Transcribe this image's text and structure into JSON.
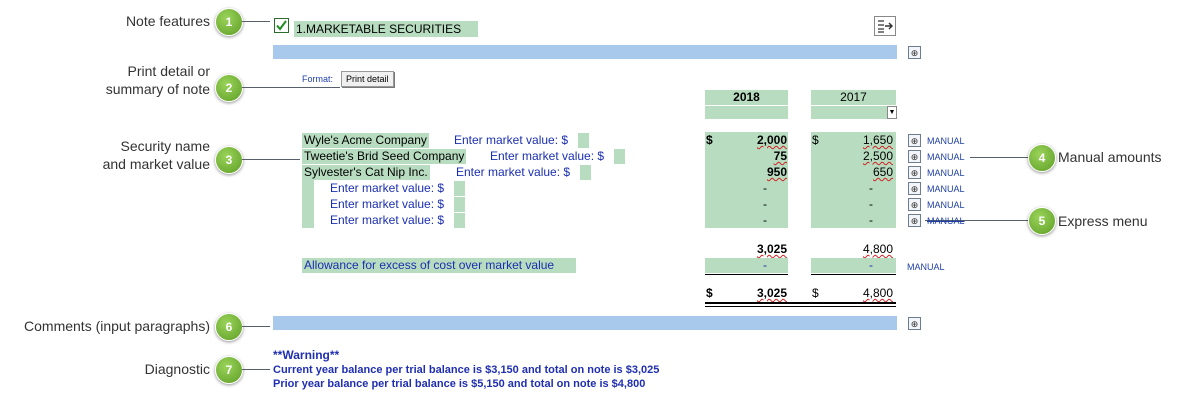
{
  "callouts": [
    {
      "num": "1",
      "label": "Note features"
    },
    {
      "num": "2",
      "label": "Print detail or summary of note"
    },
    {
      "num": "3",
      "label": "Security name and market value"
    },
    {
      "num": "4",
      "label": "Manual amounts"
    },
    {
      "num": "5",
      "label": "Express menu"
    },
    {
      "num": "6",
      "label": "Comments (input paragraphs)"
    },
    {
      "num": "7",
      "label": "Diagnostic"
    }
  ],
  "callout_lines": {
    "c2a": "Print detail or",
    "c2b": "summary of note",
    "c3a": "Security name",
    "c3b": "and market value"
  },
  "note": {
    "title": "1.MARKETABLE SECURITIES",
    "checked": true
  },
  "format": {
    "label": "Format:",
    "button": "Print detail"
  },
  "years": {
    "current": "2018",
    "prior": "2017"
  },
  "securities": [
    {
      "name": "Wyle's Acme Company",
      "prompt": "Enter market value: $",
      "cur_dollar": "$",
      "cur": "2,000",
      "prior_dollar": "$",
      "prior": "1,650",
      "manual": "MANUAL"
    },
    {
      "name": "Tweetie's Brid Seed Company",
      "prompt": "Enter market value: $",
      "cur_dollar": "",
      "cur": "75",
      "prior_dollar": "",
      "prior": "2,500",
      "manual": "MANUAL"
    },
    {
      "name": "Sylvester's Cat Nip Inc.",
      "prompt": "Enter market value: $",
      "cur_dollar": "",
      "cur": "950",
      "prior_dollar": "",
      "prior": "650",
      "manual": "MANUAL"
    },
    {
      "name": "",
      "prompt": "Enter market value: $",
      "cur_dollar": "",
      "cur": "-",
      "prior_dollar": "",
      "prior": "-",
      "manual": "MANUAL"
    },
    {
      "name": "",
      "prompt": "Enter market value: $",
      "cur_dollar": "",
      "cur": "-",
      "prior_dollar": "",
      "prior": "-",
      "manual": "MANUAL"
    },
    {
      "name": "",
      "prompt": "Enter market value: $",
      "cur_dollar": "",
      "cur": "-",
      "prior_dollar": "",
      "prior": "-",
      "manual": "MANUAL"
    }
  ],
  "subtotal": {
    "cur": "3,025",
    "prior": "4,800"
  },
  "allowance": {
    "label": "Allowance for excess of cost over market value",
    "cur": "-",
    "prior": "-",
    "manual": "MANUAL"
  },
  "total": {
    "cur_dollar": "$",
    "cur": "3,025",
    "prior_dollar": "$",
    "prior": "4,800"
  },
  "diagnostic": {
    "heading": "**Warning**",
    "line1": "Current year balance per trial balance is $3,150 and total on note is $3,025",
    "line2": "Prior year balance per trial balance is $5,150 and total on note is $4,800"
  },
  "icons": {
    "express": "express-menu-icon",
    "export": "export-icon",
    "dropdown": "dropdown-arrow-icon"
  }
}
